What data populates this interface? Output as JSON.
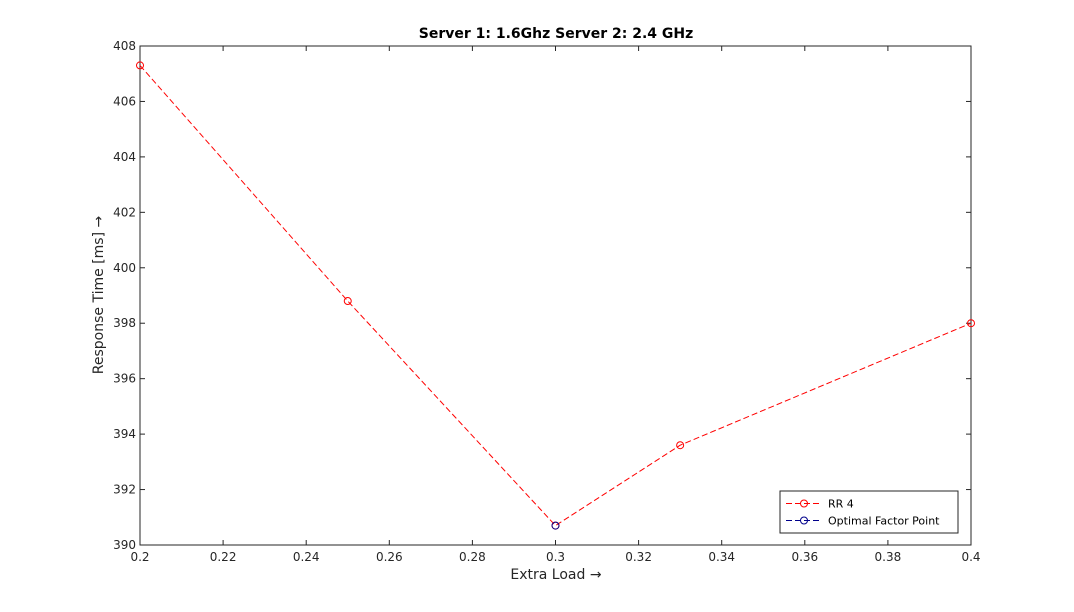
{
  "chart_data": {
    "type": "line",
    "title": "Server 1: 1.6Ghz Server 2: 2.4 GHz",
    "xlabel": "Extra Load →",
    "ylabel": "Response Time [ms] →",
    "xlim": [
      0.2,
      0.4
    ],
    "ylim": [
      390,
      408
    ],
    "xticks": [
      0.2,
      0.22,
      0.24,
      0.26,
      0.28,
      0.3,
      0.32,
      0.34,
      0.36,
      0.38,
      0.4
    ],
    "xtick_labels": [
      "0.2",
      "0.22",
      "0.24",
      "0.26",
      "0.28",
      "0.3",
      "0.32",
      "0.34",
      "0.36",
      "0.38",
      "0.4"
    ],
    "yticks": [
      390,
      392,
      394,
      396,
      398,
      400,
      402,
      404,
      406,
      408
    ],
    "ytick_labels": [
      "390",
      "392",
      "394",
      "396",
      "398",
      "400",
      "402",
      "404",
      "406",
      "408"
    ],
    "grid": false,
    "legend_position": "bottom-right",
    "series": [
      {
        "name": "RR 4",
        "color": "#ff0000",
        "line_style": "dashed",
        "marker": "circle",
        "x": [
          0.2,
          0.25,
          0.3,
          0.33,
          0.4
        ],
        "y": [
          407.3,
          398.8,
          390.7,
          393.6,
          398.0
        ]
      },
      {
        "name": "Optimal Factor Point",
        "color": "#00008b",
        "line_style": "dashed",
        "marker": "circle",
        "x": [
          0.3
        ],
        "y": [
          390.7
        ]
      }
    ]
  }
}
